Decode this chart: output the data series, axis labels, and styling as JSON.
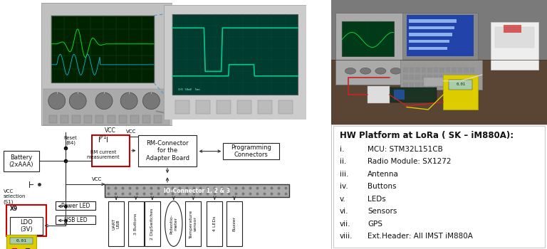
{
  "bg_color": "#ffffff",
  "hw_platform_title": "HW Platform at LoRa ( SK – iM880A):",
  "hw_items_roman": [
    "i.",
    "ii.",
    "iii.",
    "iv.",
    "v.",
    "vi.",
    "vii.",
    "viii."
  ],
  "hw_items_text": [
    "MCU: STM32L151CB",
    "Radio Module: SX1272",
    "Antenna",
    "Buttons",
    "LEDs",
    "Sensors",
    "GPS",
    "Ext.Header: All IMST iM880A"
  ],
  "red_color": "#cc0000",
  "box_color": "#222222",
  "arrow_color": "#333333",
  "dashed_color": "#5599cc",
  "io_bar_color": "#888888",
  "osc1_photo": {
    "body_color": "#bbbbbb",
    "screen_color": "#003a00",
    "knob_color": "#888888"
  },
  "osc2_photo": {
    "body_color": "#cccccc",
    "screen_color": "#004a40",
    "bezel_color": "#aaaaaa"
  },
  "lab_photo": {
    "desk_color": "#5a4535",
    "wall_color": "#888888",
    "osc_color": "#aaaaaa",
    "laptop_color": "#999999",
    "screen_color": "#3355aa",
    "multimeter_color": "#ddcc00",
    "pcb_color": "#224422",
    "box_color": "#eeeeee"
  },
  "multimeter": {
    "body_color": "#ddcc00",
    "display_color": "#336633",
    "text": "0.01"
  }
}
